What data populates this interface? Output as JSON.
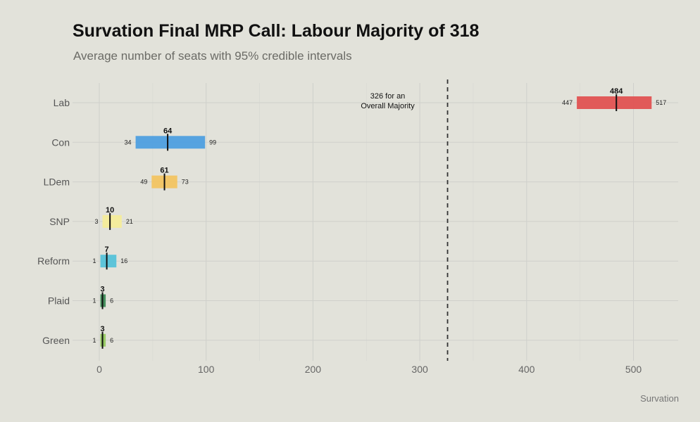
{
  "chart_data": {
    "type": "bar",
    "title": "Survation Final MRP Call: Labour Majority of 318",
    "subtitle": "Average number of seats with 95% credible intervals",
    "source": "Survation",
    "categories": [
      "Lab",
      "Con",
      "LDem",
      "SNP",
      "Reform",
      "Plaid",
      "Green"
    ],
    "series": [
      {
        "values": [
          484,
          64,
          61,
          10,
          7,
          3,
          3
        ]
      }
    ],
    "intervals": [
      {
        "low": 447,
        "high": 517
      },
      {
        "low": 34,
        "high": 99
      },
      {
        "low": 49,
        "high": 73
      },
      {
        "low": 3,
        "high": 21
      },
      {
        "low": 1,
        "high": 16
      },
      {
        "low": 1,
        "high": 6
      },
      {
        "low": 1,
        "high": 6
      }
    ],
    "colors": [
      "#e05252",
      "#4e9fe0",
      "#f2c462",
      "#f4ec9a",
      "#55c2d9",
      "#3d8b57",
      "#93c95f"
    ],
    "xlim": [
      0,
      530
    ],
    "xticks": [
      0,
      100,
      200,
      300,
      400,
      500
    ],
    "reference_line": {
      "value": 326,
      "style": "dashed",
      "label_lines": [
        "326 for an",
        "Overall Majority"
      ]
    },
    "grid": true,
    "orientation": "horizontal"
  }
}
